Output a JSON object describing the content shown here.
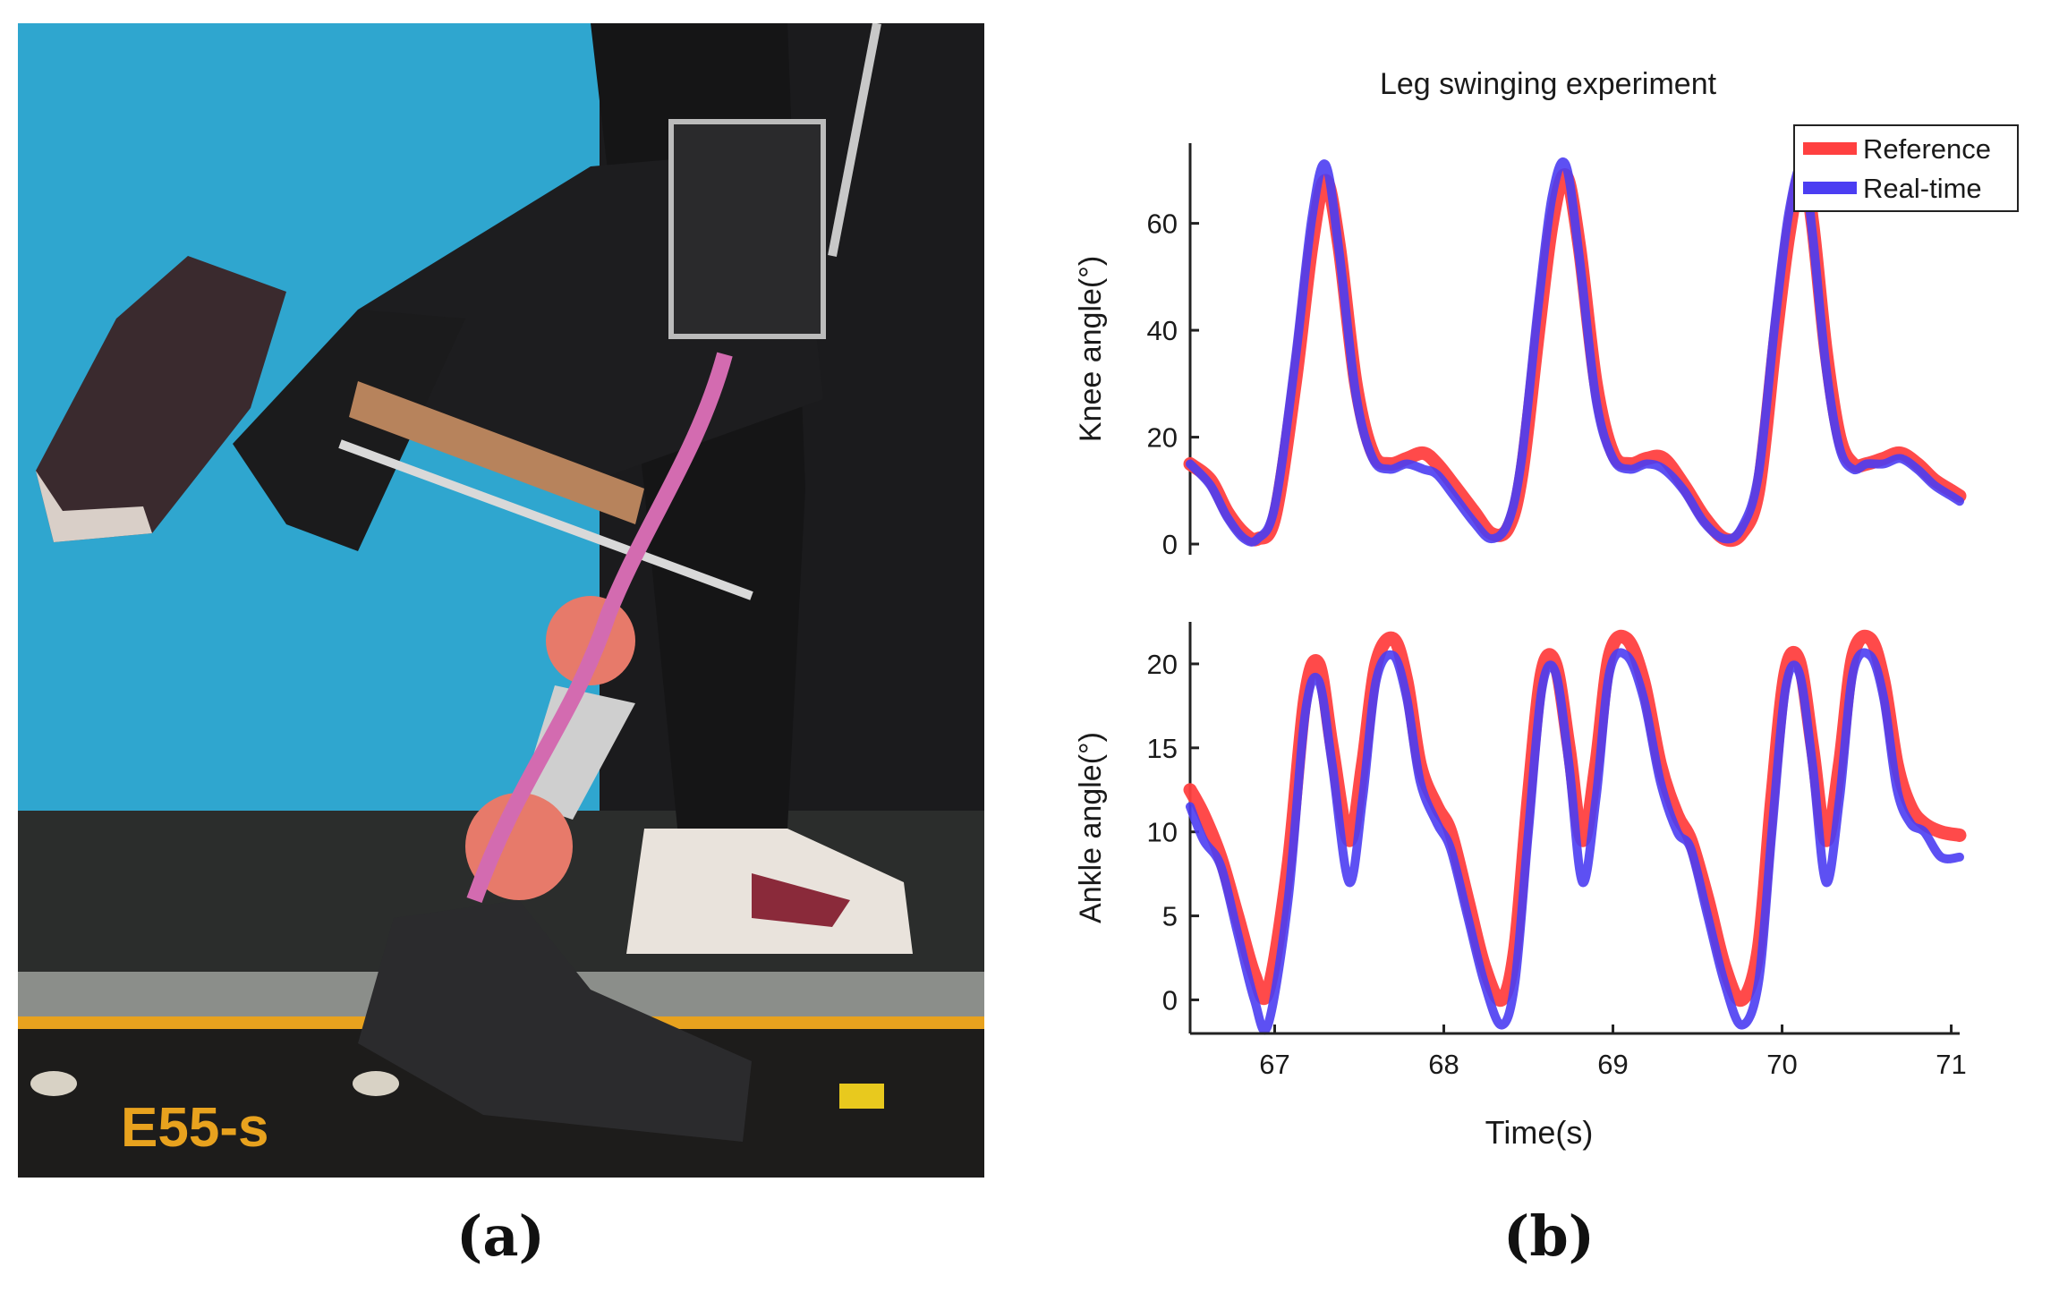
{
  "panels": {
    "a": "(a)",
    "b": "(b)"
  },
  "photo": {
    "brand_text": "E55-s"
  },
  "colors": {
    "reference": "#ff4040",
    "realtime": "#4b3df2",
    "wall": "#2fa6cf"
  },
  "chart_data": {
    "type": "line",
    "title": "Leg swinging experiment",
    "xlabel": "Time(s)",
    "x_ticks": [
      67,
      68,
      69,
      70,
      71
    ],
    "xlim": [
      66.5,
      71.05
    ],
    "legend": {
      "placement": "top-right",
      "entries": [
        "Reference",
        "Real-time"
      ]
    },
    "subplots": [
      {
        "ylabel": "Knee angle(°)",
        "ylim": [
          -2,
          75
        ],
        "y_ticks": [
          0,
          20,
          40,
          60
        ],
        "series": [
          {
            "name": "Reference",
            "x": [
              66.5,
              66.62,
              66.72,
              66.82,
              66.9,
              67.0,
              67.12,
              67.22,
              67.3,
              67.38,
              67.48,
              67.58,
              67.68,
              67.78,
              67.88,
              67.96,
              68.06,
              68.18,
              68.28,
              68.38,
              68.46,
              68.56,
              68.64,
              68.72,
              68.8,
              68.9,
              69.0,
              69.1,
              69.2,
              69.3,
              69.42,
              69.54,
              69.66,
              69.76,
              69.86,
              69.96,
              70.04,
              70.12,
              70.18,
              70.26,
              70.34,
              70.42,
              70.5,
              70.6,
              70.7,
              70.8,
              70.9,
              71.0,
              71.05
            ],
            "values": [
              15,
              12,
              6,
              2,
              1,
              5,
              30,
              56,
              68,
              56,
              30,
              17,
              15,
              16,
              17,
              15,
              11,
              6,
              2,
              3,
              13,
              40,
              60,
              69,
              56,
              30,
              17,
              15,
              16,
              16,
              11,
              5,
              1,
              2,
              10,
              38,
              58,
              70,
              60,
              36,
              20,
              15,
              15,
              16,
              17,
              15,
              12,
              10,
              9
            ]
          },
          {
            "name": "Real-time",
            "x": [
              66.5,
              66.62,
              66.72,
              66.82,
              66.9,
              67.0,
              67.12,
              67.22,
              67.3,
              67.38,
              67.48,
              67.58,
              67.68,
              67.78,
              67.88,
              67.96,
              68.06,
              68.18,
              68.28,
              68.38,
              68.46,
              68.56,
              68.64,
              68.72,
              68.8,
              68.9,
              69.0,
              69.1,
              69.2,
              69.3,
              69.42,
              69.54,
              69.66,
              69.76,
              69.86,
              69.96,
              70.04,
              70.12,
              70.18,
              70.26,
              70.34,
              70.42,
              70.5,
              70.6,
              70.7,
              70.8,
              70.9,
              71.0,
              71.05
            ],
            "values": [
              15,
              11,
              5,
              1,
              1,
              7,
              34,
              61,
              71,
              55,
              28,
              16,
              14,
              15,
              14,
              13,
              9,
              4,
              1,
              4,
              16,
              45,
              65,
              71,
              54,
              27,
              16,
              14,
              15,
              14,
              10,
              4,
              1,
              3,
              13,
              42,
              62,
              71,
              58,
              33,
              18,
              14,
              15,
              15,
              16,
              14,
              11,
              9,
              8
            ]
          }
        ]
      },
      {
        "ylabel": "Ankle angle(°)",
        "ylim": [
          -2,
          22.5
        ],
        "y_ticks": [
          0,
          5,
          10,
          15,
          20
        ],
        "series": [
          {
            "name": "Reference",
            "x": [
              66.5,
              66.58,
              66.68,
              66.78,
              66.88,
              66.96,
              67.08,
              67.18,
              67.26,
              67.34,
              67.44,
              67.52,
              67.6,
              67.7,
              67.78,
              67.86,
              67.96,
              68.04,
              68.14,
              68.24,
              68.34,
              68.42,
              68.5,
              68.58,
              68.66,
              68.74,
              68.82,
              68.9,
              68.98,
              69.08,
              69.18,
              69.28,
              69.38,
              69.46,
              69.56,
              69.66,
              69.76,
              69.86,
              69.94,
              70.02,
              70.1,
              70.18,
              70.26,
              70.34,
              70.42,
              70.52,
              70.6,
              70.68,
              70.76,
              70.84,
              70.94,
              71.05
            ],
            "values": [
              12.5,
              11,
              8.5,
              5,
              1.5,
              0.5,
              8,
              18,
              20,
              15,
              9.5,
              14,
              20,
              21.5,
              19,
              14,
              11.5,
              10,
              6,
              2,
              0,
              3,
              12,
              19.5,
              20,
              15,
              9.5,
              14,
              20.5,
              21.5,
              19,
              14,
              11,
              9.5,
              6,
              2,
              0,
              3,
              12,
              19.5,
              20.2,
              15,
              9.5,
              14,
              20.5,
              21.5,
              19,
              14,
              11.5,
              10.5,
              10,
              9.8
            ]
          },
          {
            "name": "Real-time",
            "x": [
              66.5,
              66.58,
              66.68,
              66.78,
              66.88,
              66.96,
              67.08,
              67.18,
              67.26,
              67.34,
              67.44,
              67.52,
              67.6,
              67.7,
              67.78,
              67.86,
              67.96,
              68.04,
              68.14,
              68.24,
              68.34,
              68.42,
              68.5,
              68.58,
              68.66,
              68.74,
              68.82,
              68.9,
              68.98,
              69.08,
              69.18,
              69.28,
              69.38,
              69.46,
              69.56,
              69.66,
              69.76,
              69.86,
              69.94,
              70.02,
              70.1,
              70.18,
              70.26,
              70.34,
              70.42,
              70.52,
              70.6,
              70.68,
              70.76,
              70.84,
              70.94,
              71.05
            ],
            "values": [
              11.5,
              9.5,
              8,
              4,
              0,
              -1.5,
              6,
              17,
              19,
              14,
              7,
              12,
              19,
              20.5,
              18,
              13,
              10.5,
              9,
              5,
              1,
              -1.5,
              1,
              10,
              18.5,
              19.5,
              14,
              7,
              12,
              19.5,
              20.5,
              18,
              13,
              10,
              9,
              5,
              1,
              -1.5,
              1,
              10,
              18.5,
              19.5,
              14,
              7,
              12,
              19.5,
              20.5,
              18,
              12.5,
              10.5,
              10,
              8.5,
              8.5
            ]
          }
        ]
      }
    ]
  }
}
